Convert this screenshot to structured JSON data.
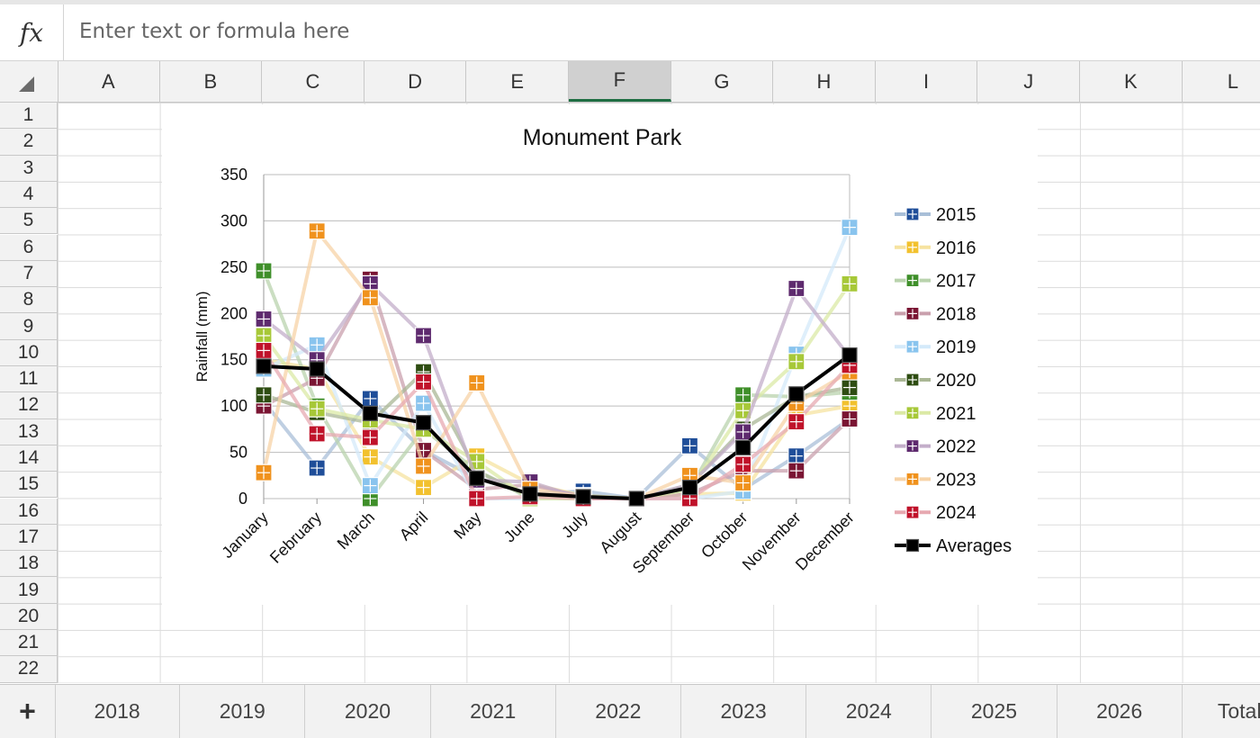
{
  "formula_bar": {
    "fx_label": "fx",
    "placeholder": "Enter text or formula here",
    "icon": "fx-icon"
  },
  "columns": [
    "A",
    "B",
    "C",
    "D",
    "E",
    "F",
    "G",
    "H",
    "I",
    "J",
    "K",
    "L"
  ],
  "selected_column": "F",
  "rows": [
    "1",
    "2",
    "3",
    "4",
    "5",
    "6",
    "7",
    "8",
    "9",
    "10",
    "11",
    "12",
    "13",
    "14",
    "15",
    "16",
    "17",
    "18",
    "19",
    "20",
    "21",
    "22"
  ],
  "sheet_tabs": [
    "2018",
    "2019",
    "2020",
    "2021",
    "2022",
    "2023",
    "2024",
    "2025",
    "2026",
    "Totals"
  ],
  "add_sheet_label": "+",
  "chart_data": {
    "type": "line",
    "title": "Monument Park",
    "ylabel": "Rainfall (mm)",
    "xlabel": "",
    "ylim": [
      0,
      350
    ],
    "yticks": [
      "0",
      "50",
      "100",
      "150",
      "200",
      "250",
      "300",
      "350"
    ],
    "categories": [
      "January",
      "February",
      "March",
      "April",
      "May",
      "June",
      "July",
      "August",
      "September",
      "October",
      "November",
      "December"
    ],
    "grid": true,
    "legend_position": "right",
    "series": [
      {
        "name": "2015",
        "color": "#1f4e99",
        "line": "#a9bfd8",
        "values": [
          105,
          33,
          108,
          52,
          22,
          5,
          8,
          0,
          57,
          10,
          46,
          86
        ]
      },
      {
        "name": "2016",
        "color": "#f2c12e",
        "line": "#f6e3a0",
        "values": [
          150,
          140,
          45,
          12,
          46,
          16,
          3,
          0,
          5,
          6,
          90,
          100
        ]
      },
      {
        "name": "2017",
        "color": "#3f8f2a",
        "line": "#b9d3ad",
        "values": [
          246,
          100,
          0,
          75,
          30,
          0,
          2,
          0,
          10,
          112,
          110,
          115
        ]
      },
      {
        "name": "2018",
        "color": "#7a1533",
        "line": "#c9a0ad",
        "values": [
          100,
          130,
          237,
          52,
          10,
          15,
          2,
          0,
          5,
          30,
          30,
          86
        ]
      },
      {
        "name": "2019",
        "color": "#89c4ee",
        "line": "#d4eafa",
        "values": [
          140,
          166,
          14,
          103,
          0,
          0,
          0,
          0,
          0,
          8,
          156,
          293
        ]
      },
      {
        "name": "2020",
        "color": "#2e4d12",
        "line": "#aab795",
        "values": [
          112,
          93,
          82,
          137,
          30,
          2,
          3,
          0,
          15,
          75,
          110,
          120
        ]
      },
      {
        "name": "2021",
        "color": "#a7c838",
        "line": "#dbe9a5",
        "values": [
          176,
          97,
          85,
          75,
          40,
          0,
          0,
          0,
          10,
          95,
          148,
          232
        ]
      },
      {
        "name": "2022",
        "color": "#5e2a6e",
        "line": "#c3aec9",
        "values": [
          194,
          150,
          232,
          176,
          20,
          18,
          0,
          0,
          15,
          72,
          227,
          153
        ]
      },
      {
        "name": "2023",
        "color": "#f0921d",
        "line": "#f7d3a7",
        "values": [
          28,
          289,
          217,
          35,
          125,
          10,
          2,
          0,
          25,
          17,
          103,
          137
        ]
      },
      {
        "name": "2024",
        "color": "#c0122a",
        "line": "#e7a9b1",
        "values": [
          160,
          70,
          66,
          126,
          0,
          2,
          0,
          0,
          0,
          37,
          83,
          144
        ]
      },
      {
        "name": "Averages",
        "color": "#000000",
        "line": "#000000",
        "values": [
          143,
          140,
          92,
          82,
          22,
          5,
          2,
          0,
          12,
          55,
          113,
          155
        ]
      }
    ]
  }
}
